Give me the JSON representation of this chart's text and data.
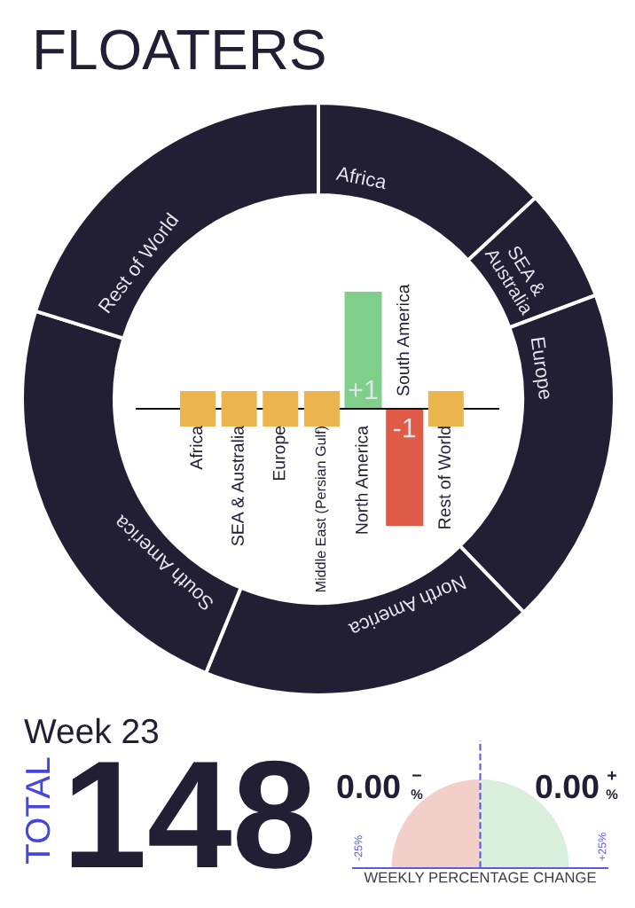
{
  "chart_data": [
    {
      "type": "donut",
      "title": "FLOATERS",
      "categories": [
        "Africa",
        "SEA &\nAustralia",
        "Europe",
        "North America",
        "South America",
        "Rest of World"
      ],
      "values": [
        13.1,
        6.2,
        18.5,
        18.4,
        23.6,
        20.2
      ],
      "colors": [
        "#221f35",
        "#221f35",
        "#221f35",
        "#221f35",
        "#221f35",
        "#221f35"
      ],
      "annotations": [
        "Week 23",
        "TOTAL",
        "148"
      ]
    },
    {
      "type": "bar",
      "categories": [
        "Africa",
        "SEA & Australia",
        "Europe",
        "Middle East (Persian Gulf)",
        "North America",
        "South America",
        "Rest of World"
      ],
      "series": [
        {
          "type": "bar",
          "values": [
            null,
            null,
            null,
            null,
            1,
            -1,
            null
          ],
          "colors": [
            null,
            null,
            null,
            null,
            "#7fcf8b",
            "#e05b47",
            null
          ],
          "value_labels": [
            null,
            null,
            null,
            null,
            "+1",
            "-1",
            null
          ]
        },
        {
          "type": "scatter",
          "values": [
            0,
            0,
            0,
            0,
            null,
            null,
            0
          ],
          "color": "#ebb44e",
          "marker": "square"
        }
      ],
      "tick_labels": "x"
    },
    {
      "type": "other",
      "xlabel": "WEEKLY PERCENTAGE CHANGE",
      "annotations": [
        "0.00",
        "−",
        "%",
        "0.00",
        "+",
        "%",
        "-25%",
        "+25%"
      ]
    }
  ]
}
